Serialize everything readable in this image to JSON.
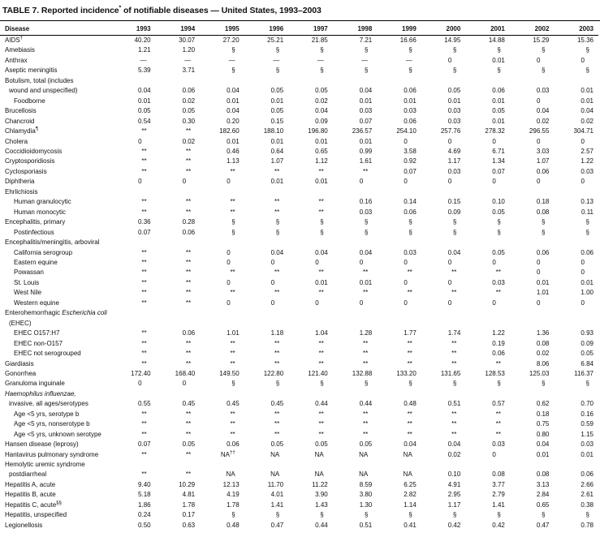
{
  "title": {
    "prefix": "TABLE 7. Reported incidence",
    "sup": "*",
    "suffix": " of notifiable diseases — United States, 1993–2003"
  },
  "columns": [
    "Disease",
    "1993",
    "1994",
    "1995",
    "1996",
    "1997",
    "1998",
    "1999",
    "2000",
    "2001",
    "2002",
    "2003"
  ],
  "rows": [
    {
      "pre": "AIDS",
      "sup": "†",
      "indent": 0,
      "values": [
        "40.20",
        "30.07",
        "27.20",
        "25.21",
        "21.85",
        "7.21",
        "16.66",
        "14.95",
        "14.88",
        "15.29",
        "15.36"
      ]
    },
    {
      "pre": "Amebiasis",
      "indent": 0,
      "values": [
        "1.21",
        "1.20",
        "§",
        "§",
        "§",
        "§",
        "§",
        "§",
        "§",
        "§",
        "§"
      ]
    },
    {
      "pre": "Anthrax",
      "indent": 0,
      "values": [
        "—",
        "—",
        "—",
        "—",
        "—",
        "—",
        "—",
        "0",
        "0.01",
        "0",
        "0"
      ]
    },
    {
      "pre": "Aseptic meningitis",
      "indent": 0,
      "values": [
        "5.39",
        "3.71",
        "§",
        "§",
        "§",
        "§",
        "§",
        "§",
        "§",
        "§",
        "§"
      ]
    },
    {
      "pre": "Botulism, total (includes",
      "indent": 0
    },
    {
      "pre": "wound and unspecified)",
      "indent": 1,
      "values": [
        "0.04",
        "0.06",
        "0.04",
        "0.05",
        "0.05",
        "0.04",
        "0.06",
        "0.05",
        "0.06",
        "0.03",
        "0.01"
      ]
    },
    {
      "pre": "Foodborne",
      "indent": 2,
      "values": [
        "0.01",
        "0.02",
        "0.01",
        "0.01",
        "0.02",
        "0.01",
        "0.01",
        "0.01",
        "0.01",
        "0",
        "0.01"
      ]
    },
    {
      "pre": "Brucellosis",
      "indent": 0,
      "values": [
        "0.05",
        "0.05",
        "0.04",
        "0.05",
        "0.04",
        "0.03",
        "0.03",
        "0.03",
        "0.05",
        "0.04",
        "0.04"
      ]
    },
    {
      "pre": "Chancroid",
      "indent": 0,
      "values": [
        "0.54",
        "0.30",
        "0.20",
        "0.15",
        "0.09",
        "0.07",
        "0.06",
        "0.03",
        "0.01",
        "0.02",
        "0.02"
      ]
    },
    {
      "pre": "Chlamydia",
      "sup": "¶",
      "indent": 0,
      "values": [
        "**",
        "**",
        "182.60",
        "188.10",
        "196.80",
        "236.57",
        "254.10",
        "257.76",
        "278.32",
        "296.55",
        "304.71"
      ]
    },
    {
      "pre": "Cholera",
      "indent": 0,
      "values": [
        "0",
        "0.02",
        "0.01",
        "0.01",
        "0.01",
        "0.01",
        "0",
        "0",
        "0",
        "0",
        "0"
      ]
    },
    {
      "pre": "Coccidioidomycosis",
      "indent": 0,
      "values": [
        "**",
        "**",
        "0.46",
        "0.64",
        "0.65",
        "0.99",
        "3.58",
        "4.69",
        "6.71",
        "3.03",
        "2.57"
      ]
    },
    {
      "pre": "Cryptosporidiosis",
      "indent": 0,
      "values": [
        "**",
        "**",
        "1.13",
        "1.07",
        "1.12",
        "1.61",
        "0.92",
        "1.17",
        "1.34",
        "1.07",
        "1.22"
      ]
    },
    {
      "pre": "Cyclosporiasis",
      "indent": 0,
      "values": [
        "**",
        "**",
        "**",
        "**",
        "**",
        "**",
        "0.07",
        "0.03",
        "0.07",
        "0.06",
        "0.03"
      ]
    },
    {
      "pre": "Diphtheria",
      "indent": 0,
      "values": [
        "0",
        "0",
        "0",
        "0.01",
        "0.01",
        "0",
        "0",
        "0",
        "0",
        "0",
        "0"
      ]
    },
    {
      "pre": "Ehrlichiosis",
      "indent": 0
    },
    {
      "pre": "Human granulocytic",
      "indent": 2,
      "values": [
        "**",
        "**",
        "**",
        "**",
        "**",
        "0.16",
        "0.14",
        "0.15",
        "0.10",
        "0.18",
        "0.13"
      ]
    },
    {
      "pre": "Human monocytic",
      "indent": 2,
      "values": [
        "**",
        "**",
        "**",
        "**",
        "**",
        "0.03",
        "0.06",
        "0.09",
        "0.05",
        "0.08",
        "0.11"
      ]
    },
    {
      "pre": "Encephalitis, primary",
      "indent": 0,
      "values": [
        "0.36",
        "0.28",
        "§",
        "§",
        "§",
        "§",
        "§",
        "§",
        "§",
        "§",
        "§"
      ]
    },
    {
      "pre": "Postinfectious",
      "indent": 2,
      "values": [
        "0.07",
        "0.06",
        "§",
        "§",
        "§",
        "§",
        "§",
        "§",
        "§",
        "§",
        "§"
      ]
    },
    {
      "pre": "Encephalitis/meningitis, arboviral",
      "indent": 0
    },
    {
      "pre": "California serogroup",
      "indent": 2,
      "values": [
        "**",
        "**",
        "0",
        "0.04",
        "0.04",
        "0.04",
        "0.03",
        "0.04",
        "0.05",
        "0.06",
        "0.06"
      ]
    },
    {
      "pre": "Eastern equine",
      "indent": 2,
      "values": [
        "**",
        "**",
        "0",
        "0",
        "0",
        "0",
        "0",
        "0",
        "0",
        "0",
        "0"
      ]
    },
    {
      "pre": "Powassan",
      "indent": 2,
      "values": [
        "**",
        "**",
        "**",
        "**",
        "**",
        "**",
        "**",
        "**",
        "**",
        "0",
        "0"
      ]
    },
    {
      "pre": "St. Louis",
      "indent": 2,
      "values": [
        "**",
        "**",
        "0",
        "0",
        "0.01",
        "0.01",
        "0",
        "0",
        "0.03",
        "0.01",
        "0.01"
      ]
    },
    {
      "pre": "West Nile",
      "indent": 2,
      "values": [
        "**",
        "**",
        "**",
        "**",
        "**",
        "**",
        "**",
        "**",
        "**",
        "1.01",
        "1.00"
      ]
    },
    {
      "pre": "Western equine",
      "indent": 2,
      "values": [
        "**",
        "**",
        "0",
        "0",
        "0",
        "0",
        "0",
        "0",
        "0",
        "0",
        "0"
      ]
    },
    {
      "pre": "Enterohemorrhagic ",
      "it": "Escherichia coli",
      "indent": 0
    },
    {
      "pre": "(EHEC)",
      "indent": 1
    },
    {
      "pre": "EHEC O157:H7",
      "indent": 2,
      "values": [
        "**",
        "0.06",
        "1.01",
        "1.18",
        "1.04",
        "1.28",
        "1.77",
        "1.74",
        "1.22",
        "1.36",
        "0.93"
      ]
    },
    {
      "pre": "EHEC non-O157",
      "indent": 2,
      "values": [
        "**",
        "**",
        "**",
        "**",
        "**",
        "**",
        "**",
        "**",
        "0.19",
        "0.08",
        "0.09"
      ]
    },
    {
      "pre": "EHEC not serogrouped",
      "indent": 2,
      "values": [
        "**",
        "**",
        "**",
        "**",
        "**",
        "**",
        "**",
        "**",
        "0.06",
        "0.02",
        "0.05"
      ]
    },
    {
      "pre": "Giardiasis",
      "indent": 0,
      "values": [
        "**",
        "**",
        "**",
        "**",
        "**",
        "**",
        "**",
        "**",
        "**",
        "8.06",
        "6.84"
      ]
    },
    {
      "pre": "Gonorrhea",
      "indent": 0,
      "values": [
        "172.40",
        "168.40",
        "149.50",
        "122.80",
        "121.40",
        "132.88",
        "133.20",
        "131.65",
        "128.53",
        "125.03",
        "116.37"
      ]
    },
    {
      "pre": "Granuloma inguinale",
      "indent": 0,
      "values": [
        "0",
        "0",
        "§",
        "§",
        "§",
        "§",
        "§",
        "§",
        "§",
        "§",
        "§"
      ]
    },
    {
      "pre": "",
      "it": "Haemophilus influenzae,",
      "indent": 0
    },
    {
      "pre": "invasive, all ages/serotypes",
      "indent": 1,
      "values": [
        "0.55",
        "0.45",
        "0.45",
        "0.45",
        "0.44",
        "0.44",
        "0.48",
        "0.51",
        "0.57",
        "0.62",
        "0.70"
      ]
    },
    {
      "pre": "Age <5 yrs, serotype b",
      "indent": 2,
      "values": [
        "**",
        "**",
        "**",
        "**",
        "**",
        "**",
        "**",
        "**",
        "**",
        "0.18",
        "0.16"
      ]
    },
    {
      "pre": "Age <5 yrs, nonserotype b",
      "indent": 2,
      "values": [
        "**",
        "**",
        "**",
        "**",
        "**",
        "**",
        "**",
        "**",
        "**",
        "0.75",
        "0.59"
      ]
    },
    {
      "pre": "Age <5 yrs, unknown serotype",
      "indent": 2,
      "values": [
        "**",
        "**",
        "**",
        "**",
        "**",
        "**",
        "**",
        "**",
        "**",
        "0.80",
        "1.15"
      ]
    },
    {
      "pre": "Hansen disease (leprosy)",
      "indent": 0,
      "values": [
        "0.07",
        "0.05",
        "0.06",
        "0.05",
        "0.05",
        "0.05",
        "0.04",
        "0.04",
        "0.03",
        "0.04",
        "0.03"
      ]
    },
    {
      "pre": "Hantavirus pulmonary syndrome",
      "indent": 0,
      "values": [
        "**",
        "**",
        "NA††",
        "NA",
        "NA",
        "NA",
        "NA",
        "0.02",
        "0",
        "0.01",
        "0.01"
      ]
    },
    {
      "pre": "Hemolytic uremic syndrome",
      "indent": 0
    },
    {
      "pre": "postdiarrheal",
      "indent": 1,
      "values": [
        "**",
        "**",
        "NA",
        "NA",
        "NA",
        "NA",
        "NA",
        "0.10",
        "0.08",
        "0.08",
        "0.06"
      ]
    },
    {
      "pre": "Hepatitis A, acute",
      "indent": 0,
      "values": [
        "9.40",
        "10.29",
        "12.13",
        "11.70",
        "11.22",
        "8.59",
        "6.25",
        "4.91",
        "3.77",
        "3.13",
        "2.66"
      ]
    },
    {
      "pre": "Hepatitis B, acute",
      "indent": 0,
      "values": [
        "5.18",
        "4.81",
        "4.19",
        "4.01",
        "3.90",
        "3.80",
        "2.82",
        "2.95",
        "2.79",
        "2.84",
        "2.61"
      ]
    },
    {
      "pre": "Hepatitis C, acute",
      "sup": "§§",
      "indent": 0,
      "values": [
        "1.86",
        "1.78",
        "1.78",
        "1.41",
        "1.43",
        "1.30",
        "1.14",
        "1.17",
        "1.41",
        "0.65",
        "0.38"
      ]
    },
    {
      "pre": "Hepatitis, unspecified",
      "indent": 0,
      "values": [
        "0.24",
        "0.17",
        "§",
        "§",
        "§",
        "§",
        "§",
        "§",
        "§",
        "§",
        "§"
      ]
    },
    {
      "pre": "Legionellosis",
      "indent": 0,
      "values": [
        "0.50",
        "0.63",
        "0.48",
        "0.47",
        "0.44",
        "0.51",
        "0.41",
        "0.42",
        "0.42",
        "0.47",
        "0.78"
      ]
    }
  ]
}
